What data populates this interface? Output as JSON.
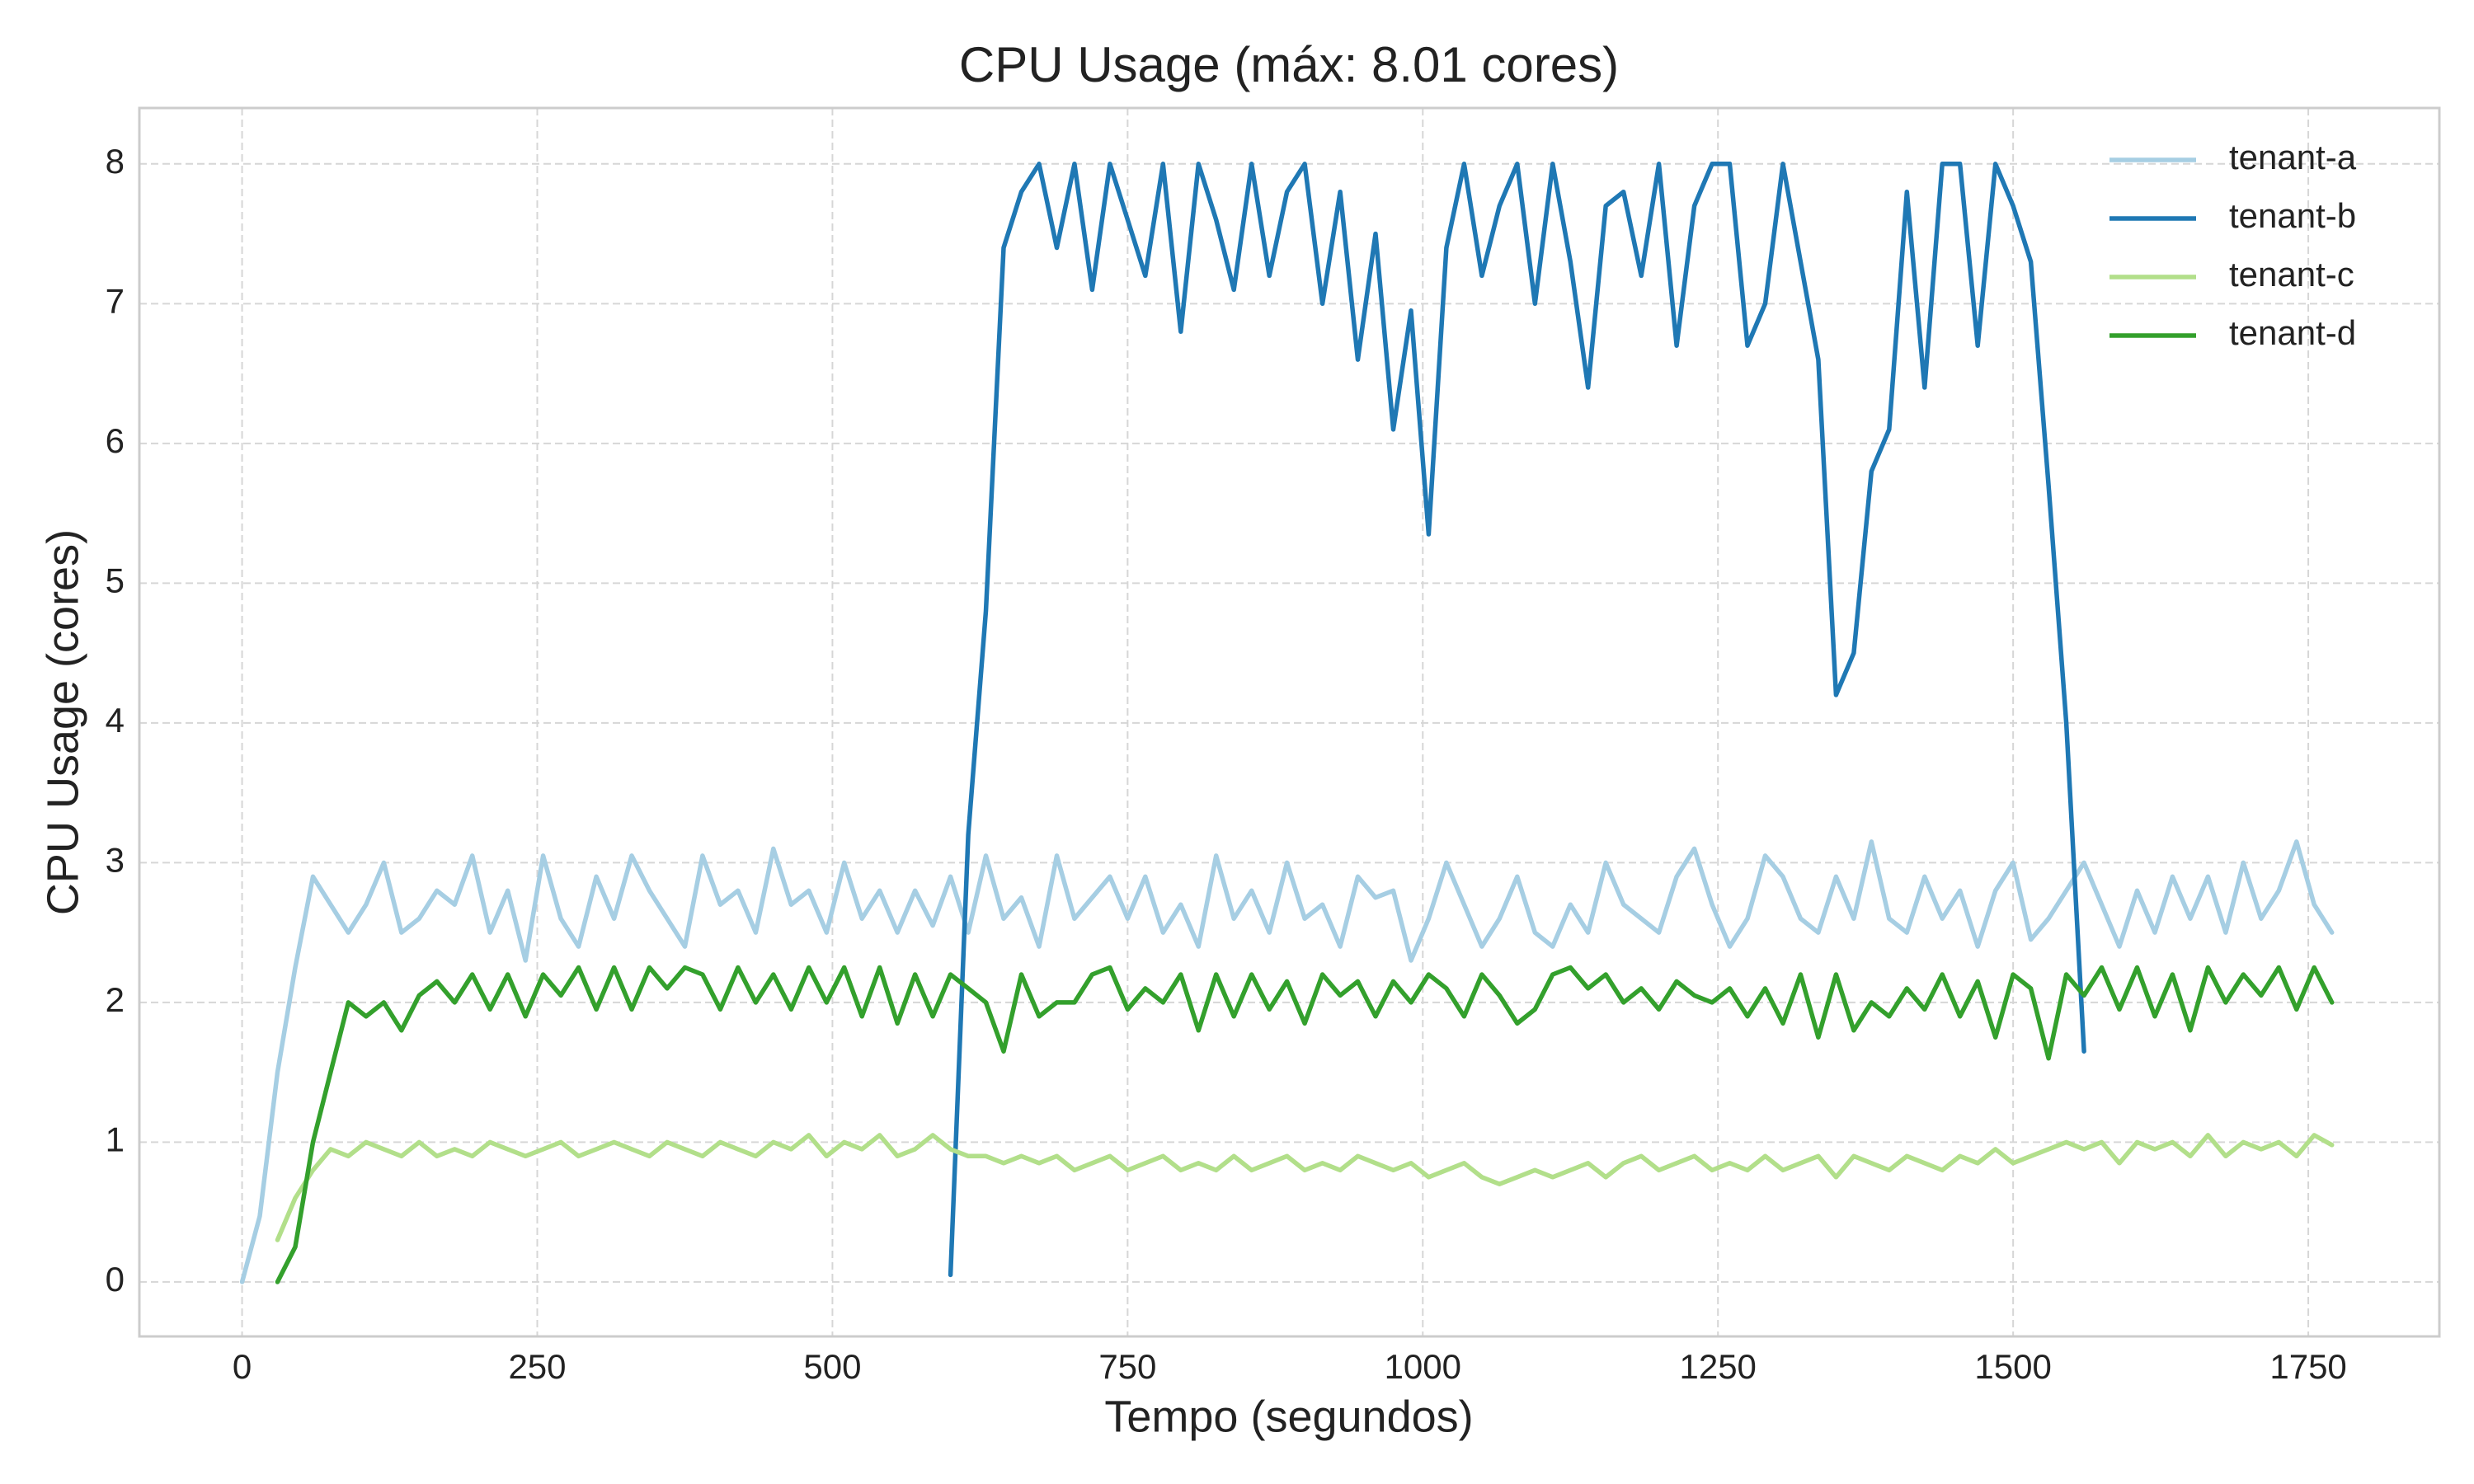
{
  "chart_data": {
    "type": "line",
    "title": "CPU Usage (máx: 8.01 cores)",
    "x_label": "Tempo (segundos)",
    "y_label": "CPU Usage (cores)",
    "x": [
      0,
      15,
      30,
      45,
      60,
      75,
      90,
      105,
      120,
      135,
      150,
      165,
      180,
      195,
      210,
      225,
      240,
      255,
      270,
      285,
      300,
      315,
      330,
      345,
      360,
      375,
      390,
      405,
      420,
      435,
      450,
      465,
      480,
      495,
      510,
      525,
      540,
      555,
      570,
      585,
      600,
      615,
      630,
      645,
      660,
      675,
      690,
      705,
      720,
      735,
      750,
      765,
      780,
      795,
      810,
      825,
      840,
      855,
      870,
      885,
      900,
      915,
      930,
      945,
      960,
      975,
      990,
      1005,
      1020,
      1035,
      1050,
      1065,
      1080,
      1095,
      1110,
      1125,
      1140,
      1155,
      1170,
      1185,
      1200,
      1215,
      1230,
      1245,
      1260,
      1275,
      1290,
      1305,
      1320,
      1335,
      1350,
      1365,
      1380,
      1395,
      1410,
      1425,
      1440,
      1455,
      1470,
      1485,
      1500,
      1515,
      1530,
      1545,
      1560,
      1575,
      1590,
      1605,
      1620,
      1635,
      1650,
      1665,
      1680,
      1695,
      1710,
      1725,
      1740,
      1755,
      1770
    ],
    "series": [
      {
        "name": "tenant-a",
        "color": "#a6cee3",
        "values": [
          0,
          0.47,
          1.5,
          2.25,
          2.9,
          2.7,
          2.5,
          2.7,
          3.0,
          2.5,
          2.6,
          2.8,
          2.7,
          3.05,
          2.5,
          2.8,
          2.3,
          3.05,
          2.6,
          2.4,
          2.9,
          2.6,
          3.05,
          2.8,
          2.6,
          2.4,
          3.05,
          2.7,
          2.8,
          2.5,
          3.1,
          2.7,
          2.8,
          2.5,
          3.0,
          2.6,
          2.8,
          2.5,
          2.8,
          2.55,
          2.9,
          2.5,
          3.05,
          2.6,
          2.75,
          2.4,
          3.05,
          2.6,
          2.75,
          2.9,
          2.6,
          2.9,
          2.5,
          2.7,
          2.4,
          3.05,
          2.6,
          2.8,
          2.5,
          3.0,
          2.6,
          2.7,
          2.4,
          2.9,
          2.75,
          2.8,
          2.3,
          2.6,
          3.0,
          2.7,
          2.4,
          2.6,
          2.9,
          2.5,
          2.4,
          2.7,
          2.5,
          3.0,
          2.7,
          2.6,
          2.5,
          2.9,
          3.1,
          2.7,
          2.4,
          2.6,
          3.05,
          2.9,
          2.6,
          2.5,
          2.9,
          2.6,
          3.15,
          2.6,
          2.5,
          2.9,
          2.6,
          2.8,
          2.4,
          2.8,
          3.0,
          2.45,
          2.6,
          2.8,
          3.0,
          2.7,
          2.4,
          2.8,
          2.5,
          2.9,
          2.6,
          2.9,
          2.5,
          3.0,
          2.6,
          2.8,
          3.15,
          2.7,
          2.5
        ]
      },
      {
        "name": "tenant-b",
        "color": "#1f78b4",
        "values": [
          null,
          null,
          null,
          null,
          null,
          null,
          null,
          null,
          null,
          null,
          null,
          null,
          null,
          null,
          null,
          null,
          null,
          null,
          null,
          null,
          null,
          null,
          null,
          null,
          null,
          null,
          null,
          null,
          null,
          null,
          null,
          null,
          null,
          null,
          null,
          null,
          null,
          null,
          null,
          null,
          0.05,
          3.2,
          4.8,
          7.4,
          7.8,
          8.0,
          7.4,
          8.0,
          7.1,
          8.0,
          7.6,
          7.2,
          8.0,
          6.8,
          8.0,
          7.6,
          7.1,
          8.0,
          7.2,
          7.8,
          8.0,
          7.0,
          7.8,
          6.6,
          7.5,
          6.1,
          6.95,
          5.35,
          7.4,
          8.0,
          7.2,
          7.7,
          8.0,
          7.0,
          8.0,
          7.3,
          6.4,
          7.7,
          7.8,
          7.2,
          8.0,
          6.7,
          7.7,
          8.0,
          8.0,
          6.7,
          7.0,
          8.0,
          7.3,
          6.6,
          4.2,
          4.5,
          5.8,
          6.1,
          7.8,
          6.4,
          8.0,
          8.0,
          6.7,
          8.0,
          7.7,
          7.3,
          5.7,
          4.0,
          1.65,
          null,
          null,
          null,
          null,
          null,
          null,
          null,
          null,
          null,
          null,
          null,
          null,
          null,
          null
        ]
      },
      {
        "name": "tenant-c",
        "color": "#b2df8a",
        "values": [
          null,
          null,
          0.3,
          0.6,
          0.8,
          0.95,
          0.9,
          1.0,
          0.95,
          0.9,
          1.0,
          0.9,
          0.95,
          0.9,
          1.0,
          0.95,
          0.9,
          0.95,
          1.0,
          0.9,
          0.95,
          1.0,
          0.95,
          0.9,
          1.0,
          0.95,
          0.9,
          1.0,
          0.95,
          0.9,
          1.0,
          0.95,
          1.05,
          0.9,
          1.0,
          0.95,
          1.05,
          0.9,
          0.95,
          1.05,
          0.95,
          0.9,
          0.9,
          0.85,
          0.9,
          0.85,
          0.9,
          0.8,
          0.85,
          0.9,
          0.8,
          0.85,
          0.9,
          0.8,
          0.85,
          0.8,
          0.9,
          0.8,
          0.85,
          0.9,
          0.8,
          0.85,
          0.8,
          0.9,
          0.85,
          0.8,
          0.85,
          0.75,
          0.8,
          0.85,
          0.75,
          0.7,
          0.75,
          0.8,
          0.75,
          0.8,
          0.85,
          0.75,
          0.85,
          0.9,
          0.8,
          0.85,
          0.9,
          0.8,
          0.85,
          0.8,
          0.9,
          0.8,
          0.85,
          0.9,
          0.75,
          0.9,
          0.85,
          0.8,
          0.9,
          0.85,
          0.8,
          0.9,
          0.85,
          0.95,
          0.85,
          0.9,
          0.95,
          1.0,
          0.95,
          1.0,
          0.85,
          1.0,
          0.95,
          1.0,
          0.9,
          1.05,
          0.9,
          1.0,
          0.95,
          1.0,
          0.9,
          1.05,
          0.98
        ]
      },
      {
        "name": "tenant-d",
        "color": "#33a02c",
        "values": [
          null,
          null,
          0.0,
          0.25,
          1.0,
          1.5,
          2.0,
          1.9,
          2.0,
          1.8,
          2.05,
          2.15,
          2.0,
          2.2,
          1.95,
          2.2,
          1.9,
          2.2,
          2.05,
          2.25,
          1.95,
          2.25,
          1.95,
          2.25,
          2.1,
          2.25,
          2.2,
          1.95,
          2.25,
          2.0,
          2.2,
          1.95,
          2.25,
          2.0,
          2.25,
          1.9,
          2.25,
          1.85,
          2.2,
          1.9,
          2.2,
          2.1,
          2.0,
          1.65,
          2.2,
          1.9,
          2.0,
          2.0,
          2.2,
          2.25,
          1.95,
          2.1,
          2.0,
          2.2,
          1.8,
          2.2,
          1.9,
          2.2,
          1.95,
          2.15,
          1.85,
          2.2,
          2.05,
          2.15,
          1.9,
          2.15,
          2.0,
          2.2,
          2.1,
          1.9,
          2.2,
          2.05,
          1.85,
          1.95,
          2.2,
          2.25,
          2.1,
          2.2,
          2.0,
          2.1,
          1.95,
          2.15,
          2.05,
          2.0,
          2.1,
          1.9,
          2.1,
          1.85,
          2.2,
          1.75,
          2.2,
          1.8,
          2.0,
          1.9,
          2.1,
          1.95,
          2.2,
          1.9,
          2.15,
          1.75,
          2.2,
          2.1,
          1.6,
          2.2,
          2.05,
          2.25,
          1.95,
          2.25,
          1.9,
          2.2,
          1.8,
          2.25,
          2.0,
          2.2,
          2.05,
          2.25,
          1.95,
          2.25,
          2.0
        ]
      }
    ],
    "xlim": [
      -87,
      1861
    ],
    "ylim": [
      -0.39,
      8.4
    ],
    "xticks": [
      0,
      250,
      500,
      750,
      1000,
      1250,
      1500,
      1750
    ],
    "yticks": [
      0,
      1,
      2,
      3,
      4,
      5,
      6,
      7,
      8
    ],
    "grid": true,
    "legend": "upper right"
  }
}
